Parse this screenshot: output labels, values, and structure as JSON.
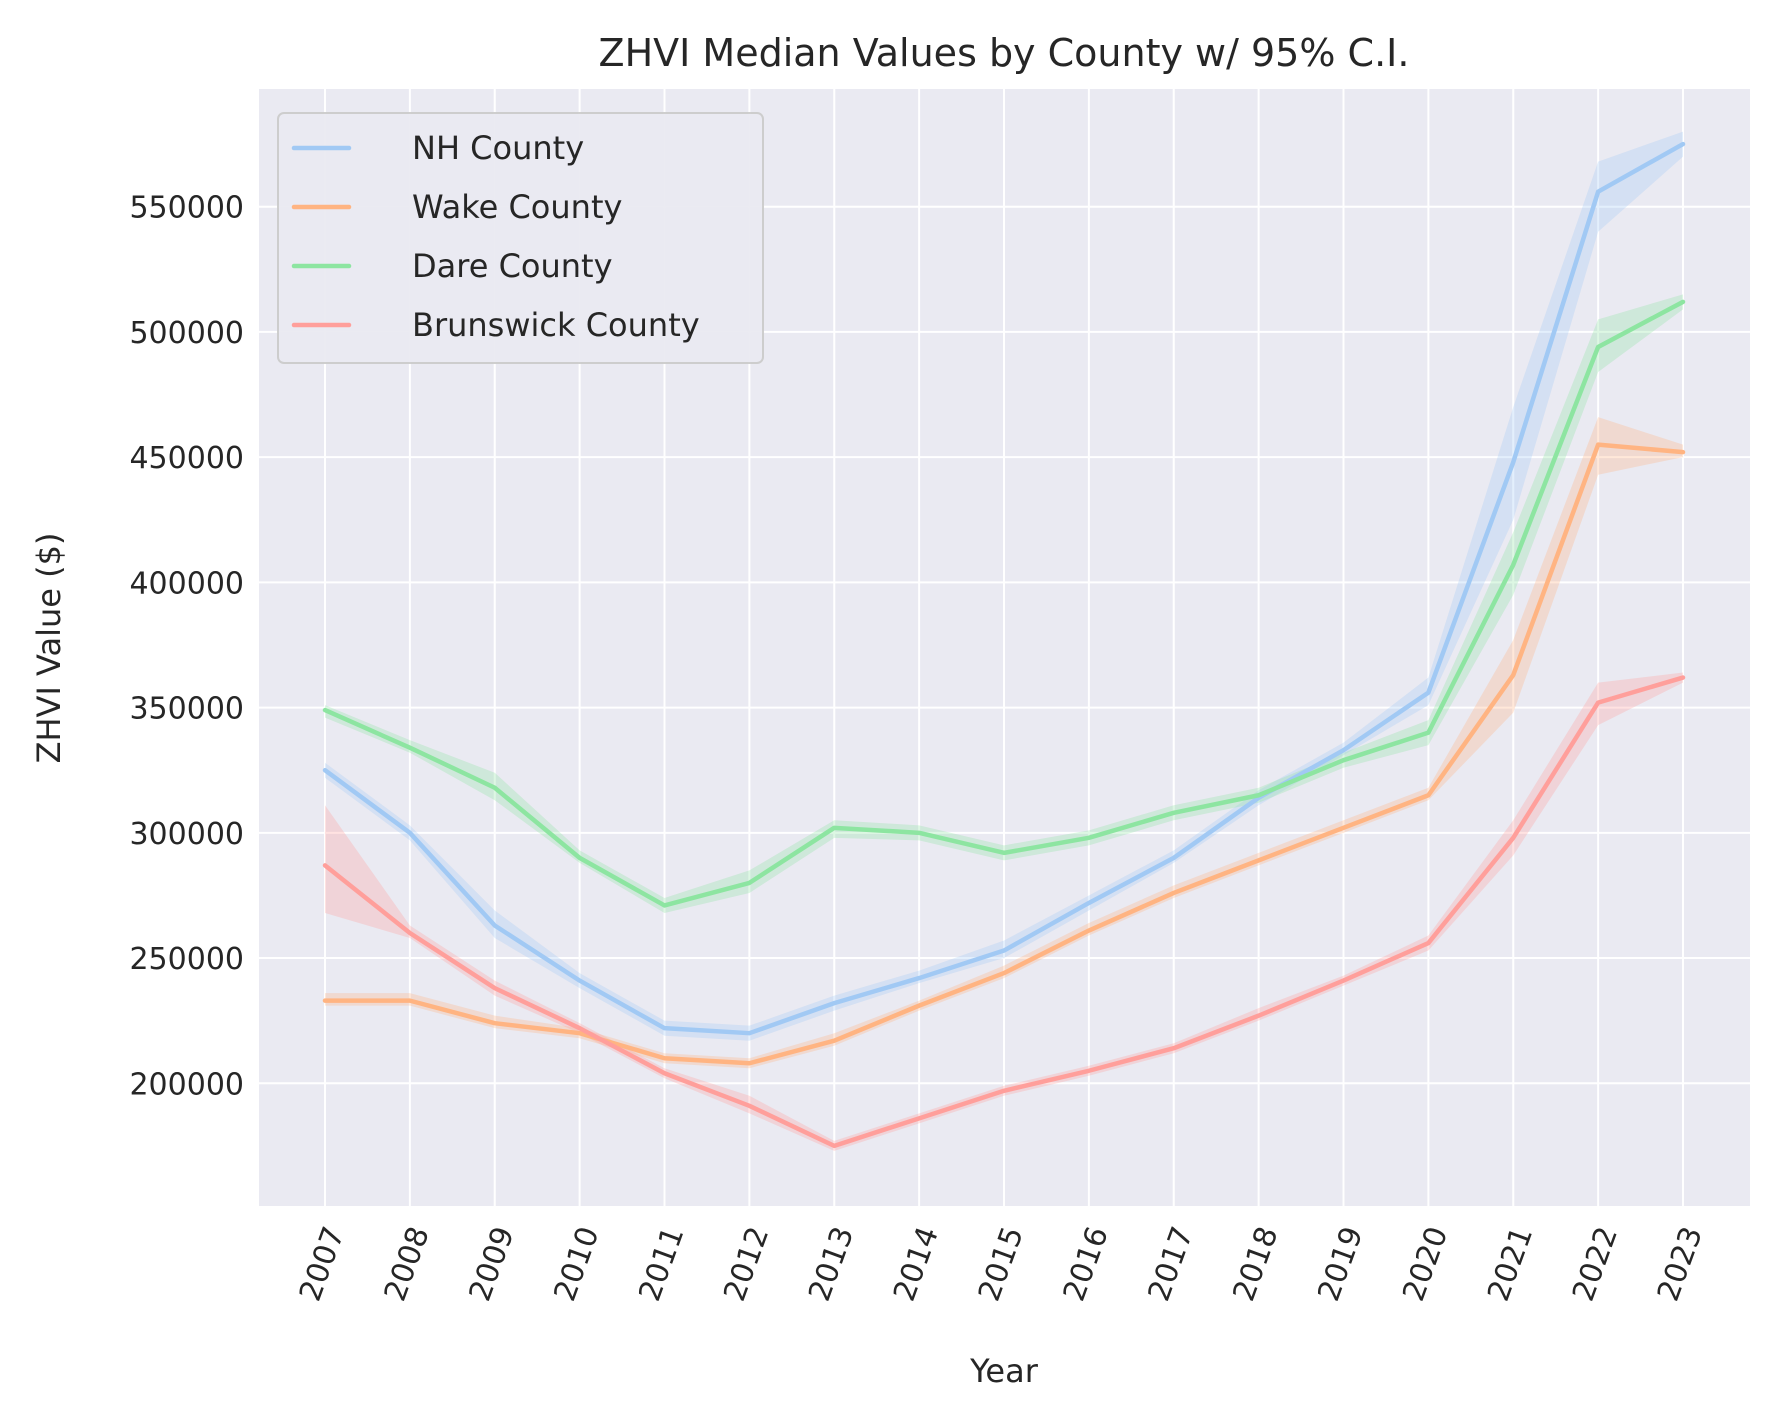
{
  "chart_data": {
    "type": "line",
    "title": "ZHVI Median Values by County w/ 95% C.I.",
    "xlabel": "Year",
    "ylabel": "ZHVI Value ($)",
    "categories": [
      "2007",
      "2008",
      "2009",
      "2010",
      "2011",
      "2012",
      "2013",
      "2014",
      "2015",
      "2016",
      "2017",
      "2018",
      "2019",
      "2020",
      "2021",
      "2022",
      "2023"
    ],
    "yticks": [
      200000,
      250000,
      300000,
      350000,
      400000,
      450000,
      500000,
      550000
    ],
    "ylim": [
      151000,
      597000
    ],
    "grid": true,
    "legend_position": "top-left",
    "background": "#eaeaf2",
    "series": [
      {
        "name": "NH County",
        "color": "#a1c9f4",
        "values": [
          325000,
          300000,
          263000,
          241000,
          222000,
          220000,
          232000,
          242000,
          253000,
          272000,
          290000,
          314000,
          333000,
          356000,
          448000,
          556000,
          575000
        ],
        "ci_low": [
          322000,
          297000,
          258000,
          238000,
          219000,
          217000,
          229000,
          240000,
          250000,
          269000,
          288000,
          311000,
          331000,
          351000,
          425000,
          540000,
          570000
        ],
        "ci_high": [
          328000,
          303000,
          269000,
          244000,
          225000,
          223000,
          235000,
          245000,
          257000,
          275000,
          293000,
          317000,
          336000,
          362000,
          470000,
          568000,
          580000
        ]
      },
      {
        "name": "Wake County",
        "color": "#ffb482",
        "values": [
          233000,
          233000,
          224000,
          220000,
          210000,
          208000,
          217000,
          231000,
          244000,
          261000,
          276000,
          289000,
          302000,
          315000,
          363000,
          455000,
          452000
        ],
        "ci_low": [
          231000,
          231000,
          222000,
          218000,
          208000,
          206000,
          215000,
          229000,
          242000,
          259000,
          274000,
          287000,
          300000,
          313000,
          348000,
          443000,
          450000
        ],
        "ci_high": [
          236000,
          236000,
          227000,
          222000,
          212000,
          210000,
          220000,
          233000,
          247000,
          264000,
          279000,
          292000,
          305000,
          318000,
          377000,
          466000,
          455000
        ]
      },
      {
        "name": "Dare County",
        "color": "#8de5a1",
        "values": [
          349000,
          334000,
          318000,
          290000,
          271000,
          280000,
          302000,
          300000,
          292000,
          298000,
          308000,
          315000,
          329000,
          340000,
          407000,
          494000,
          512000
        ],
        "ci_low": [
          346000,
          332000,
          313000,
          288000,
          268000,
          276000,
          298000,
          297000,
          289000,
          295000,
          305000,
          312000,
          326000,
          335000,
          395000,
          484000,
          509000
        ],
        "ci_high": [
          351000,
          337000,
          324000,
          293000,
          274000,
          285000,
          305000,
          303000,
          295000,
          301000,
          311000,
          318000,
          332000,
          345000,
          420000,
          505000,
          515000
        ]
      },
      {
        "name": "Brunswick County",
        "color": "#ff9f9b",
        "values": [
          287000,
          260000,
          238000,
          222000,
          204000,
          191000,
          175000,
          186000,
          197000,
          205000,
          214000,
          227000,
          241000,
          256000,
          298000,
          352000,
          362000
        ],
        "ci_low": [
          268000,
          258000,
          235000,
          220000,
          202000,
          188000,
          173000,
          184000,
          195000,
          203000,
          212000,
          225000,
          239000,
          253000,
          291000,
          343000,
          360000
        ],
        "ci_high": [
          311000,
          263000,
          241000,
          224000,
          206000,
          195000,
          177000,
          188000,
          199000,
          207000,
          216000,
          230000,
          243000,
          259000,
          305000,
          360000,
          364000
        ]
      }
    ]
  }
}
